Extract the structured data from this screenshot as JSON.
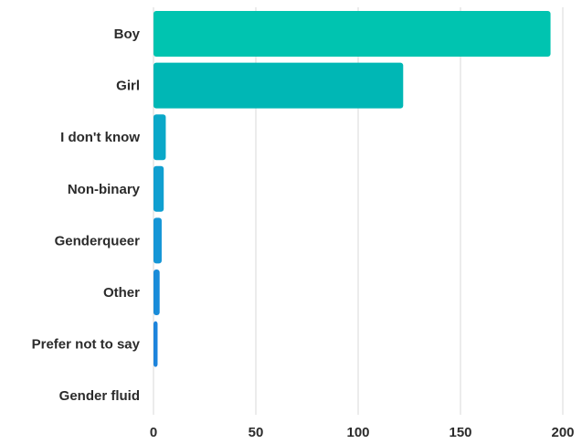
{
  "chart_data": {
    "type": "bar",
    "orientation": "horizontal",
    "categories": [
      "Boy",
      "Girl",
      "I don't know",
      "Non-binary",
      "Genderqueer",
      "Other",
      "Prefer not to say",
      "Gender fluid"
    ],
    "values": [
      194,
      122,
      6,
      5,
      4,
      3,
      2,
      0
    ],
    "xlim": [
      0,
      200
    ],
    "xticks": [
      "0",
      "50",
      "100",
      "150",
      "200"
    ],
    "grid": true,
    "legend": "none",
    "colors": [
      "#00c4b0",
      "#00b7b5",
      "#0aa8c8",
      "#109fd0",
      "#1596d6",
      "#198cd9",
      "#1d84dc",
      "#2080de"
    ]
  }
}
